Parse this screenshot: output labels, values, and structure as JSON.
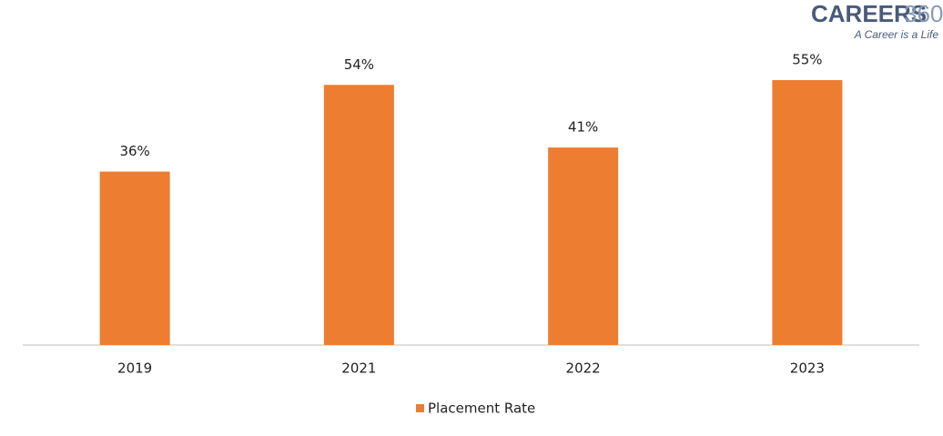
{
  "chart_data": {
    "type": "bar",
    "categories": [
      "2019",
      "2021",
      "2022",
      "2023"
    ],
    "series": [
      {
        "name": "Placement Rate",
        "color": "#ed7d31",
        "values": [
          36,
          54,
          41,
          55
        ],
        "value_labels": [
          "36%",
          "54%",
          "41%",
          "55%"
        ]
      }
    ],
    "legend": "bottom"
  },
  "logo": {
    "brand": "CAREERS",
    "number": "360",
    "tagline": "A Career is a Life"
  }
}
